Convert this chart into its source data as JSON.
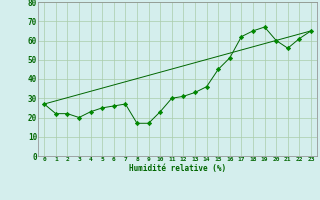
{
  "line1_x": [
    0,
    1,
    2,
    3,
    4,
    5,
    6,
    7,
    8,
    9,
    10,
    11,
    12,
    13,
    14,
    15,
    16,
    17,
    18,
    19,
    20,
    21,
    22,
    23
  ],
  "line1_y": [
    27,
    22,
    22,
    20,
    23,
    25,
    26,
    27,
    17,
    17,
    23,
    30,
    31,
    33,
    36,
    45,
    51,
    62,
    65,
    67,
    60,
    56,
    61,
    65
  ],
  "trend_x": [
    0,
    23
  ],
  "trend_y": [
    27,
    65
  ],
  "line_color": "#006600",
  "marker_color": "#008800",
  "bg_color": "#d4eeed",
  "grid_color": "#aaccaa",
  "xlabel": "Humidité relative (%)",
  "ylim": [
    0,
    80
  ],
  "xlim": [
    -0.5,
    23.5
  ],
  "yticks": [
    0,
    10,
    20,
    30,
    40,
    50,
    60,
    70,
    80
  ],
  "xticks": [
    0,
    1,
    2,
    3,
    4,
    5,
    6,
    7,
    8,
    9,
    10,
    11,
    12,
    13,
    14,
    15,
    16,
    17,
    18,
    19,
    20,
    21,
    22,
    23
  ]
}
